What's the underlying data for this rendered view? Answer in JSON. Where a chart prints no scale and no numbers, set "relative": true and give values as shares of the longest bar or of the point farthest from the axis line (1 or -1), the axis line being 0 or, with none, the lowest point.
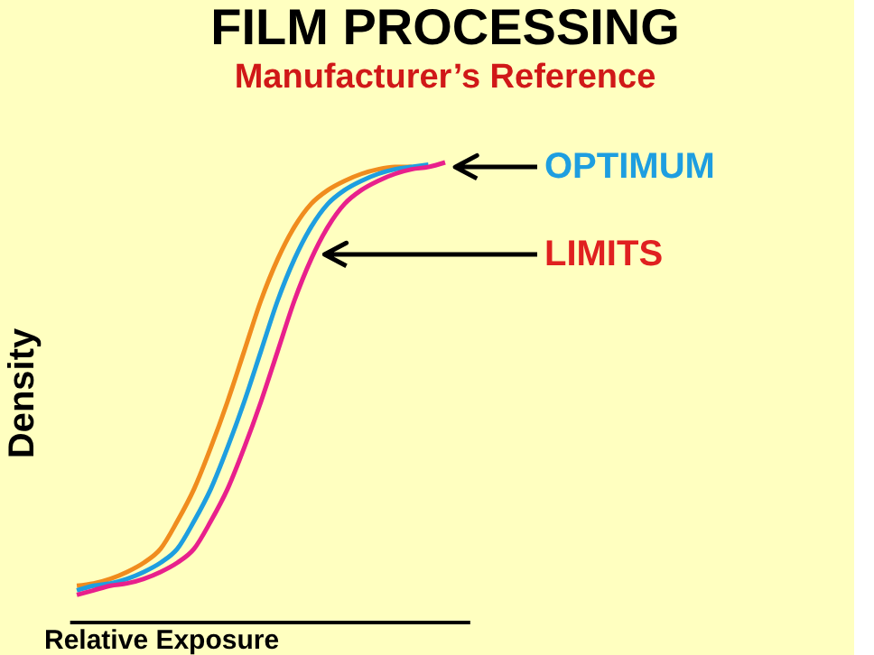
{
  "chart_data": {
    "type": "line",
    "title": "FILM PROCESSING",
    "subtitle": "Manufacturer’s Reference",
    "xlabel": "Relative Exposure",
    "ylabel": "Density",
    "relative": true,
    "categories": [
      null,
      null,
      null,
      null,
      null,
      null,
      null,
      null,
      null,
      null,
      null,
      null,
      null,
      null,
      null,
      null,
      null,
      null,
      null,
      null,
      null,
      null,
      null
    ],
    "series": [
      {
        "color": "#f08c1e",
        "values": [
          0.08,
          0.085,
          0.095,
          0.11,
          0.13,
          0.16,
          0.22,
          0.29,
          0.38,
          0.48,
          0.59,
          0.7,
          0.79,
          0.86,
          0.91,
          0.94,
          0.96,
          0.975,
          0.985,
          0.99,
          0.99,
          null,
          null
        ]
      },
      {
        "color": "#1e9ee0",
        "values": [
          0.07,
          0.08,
          0.085,
          0.095,
          0.11,
          0.13,
          0.16,
          0.22,
          0.29,
          0.38,
          0.48,
          0.59,
          0.7,
          0.79,
          0.86,
          0.91,
          0.94,
          0.96,
          0.975,
          0.985,
          0.99,
          0.995,
          null
        ]
      },
      {
        "color": "#e8208c",
        "values": [
          0.06,
          0.07,
          0.08,
          0.085,
          0.095,
          0.11,
          0.13,
          0.16,
          0.22,
          0.29,
          0.38,
          0.48,
          0.59,
          0.7,
          0.79,
          0.86,
          0.91,
          0.94,
          0.96,
          0.975,
          0.985,
          0.99,
          1.0
        ]
      }
    ],
    "annotations": [
      "OPTIMUM",
      "LIMITS"
    ],
    "grid": false,
    "marker": "none",
    "line_style": "solid"
  }
}
